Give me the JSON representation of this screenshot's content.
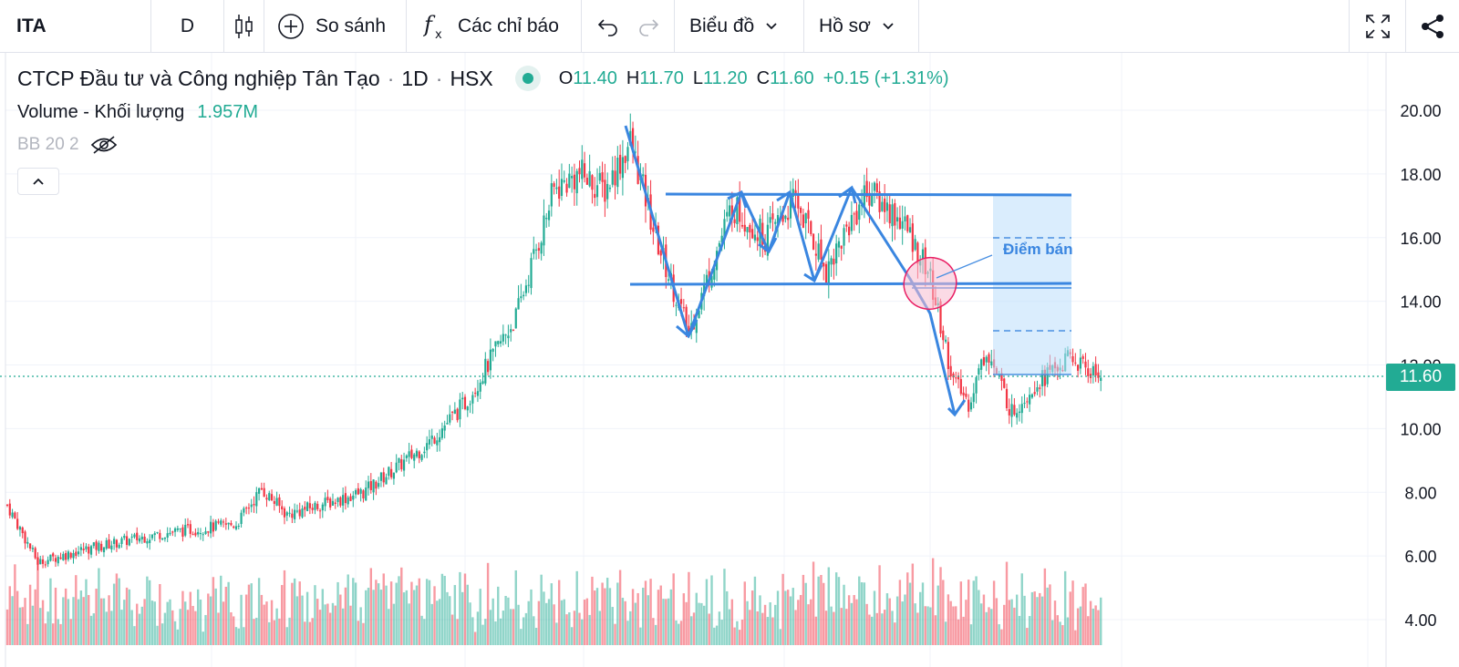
{
  "toolbar": {
    "symbol": "ITA",
    "interval": "D",
    "compare_label": "So sánh",
    "indicators_label": "Các chỉ báo",
    "chart_menu_label": "Biểu đồ",
    "profile_label": "Hồ sơ",
    "icons": [
      "candles-icon",
      "plus-circle-icon",
      "function-icon",
      "undo-icon",
      "redo-icon",
      "chevron-down-icon",
      "fullscreen-icon",
      "share-icon"
    ]
  },
  "legend": {
    "name": "CTCP Đầu tư và Công nghiệp Tân Tạo",
    "sep": "·",
    "timeframe": "1D",
    "exchange": "HSX",
    "open_key": "O",
    "open": "11.40",
    "high_key": "H",
    "high": "11.70",
    "low_key": "L",
    "low": "11.20",
    "close_key": "C",
    "close": "11.60",
    "change": "+0.15 (+1.31%)",
    "volume_label": "Volume - Khối lượng",
    "volume_value": "1.957M",
    "bb_label": "BB 20 2"
  },
  "price_axis": {
    "labels": [
      "20.00",
      "18.00",
      "16.00",
      "14.00",
      "12.00",
      "10.00",
      "8.00",
      "6.00",
      "4.00"
    ],
    "last_price": "11.60"
  },
  "annotation": {
    "sell_point_label": "Điểm bán"
  },
  "colors": {
    "up": "#22ab94",
    "down": "#f23645",
    "drawing": "#2962ff",
    "accent_blue": "#4a90e2"
  },
  "chart_data": {
    "type": "candlestick",
    "symbol": "ITA",
    "ylim": [
      3.5,
      21.0
    ],
    "close_anchors": [
      [
        0,
        7.6
      ],
      [
        12,
        5.8
      ],
      [
        30,
        6.2
      ],
      [
        60,
        6.7
      ],
      [
        90,
        7.0
      ],
      [
        100,
        8.1
      ],
      [
        110,
        7.3
      ],
      [
        140,
        8.0
      ],
      [
        165,
        9.5
      ],
      [
        180,
        10.8
      ],
      [
        200,
        13.5
      ],
      [
        215,
        17.5
      ],
      [
        225,
        18.0
      ],
      [
        235,
        17.5
      ],
      [
        245,
        19.0
      ],
      [
        255,
        16.0
      ],
      [
        268,
        13.0
      ],
      [
        285,
        17.0
      ],
      [
        298,
        16.0
      ],
      [
        310,
        17.2
      ],
      [
        322,
        15.0
      ],
      [
        338,
        17.5
      ],
      [
        352,
        16.5
      ],
      [
        362,
        15.0
      ],
      [
        372,
        11.5
      ],
      [
        378,
        10.8
      ],
      [
        385,
        12.5
      ],
      [
        395,
        10.5
      ],
      [
        405,
        11.5
      ],
      [
        418,
        12.2
      ],
      [
        430,
        11.6
      ]
    ],
    "last_close": 11.6
  }
}
